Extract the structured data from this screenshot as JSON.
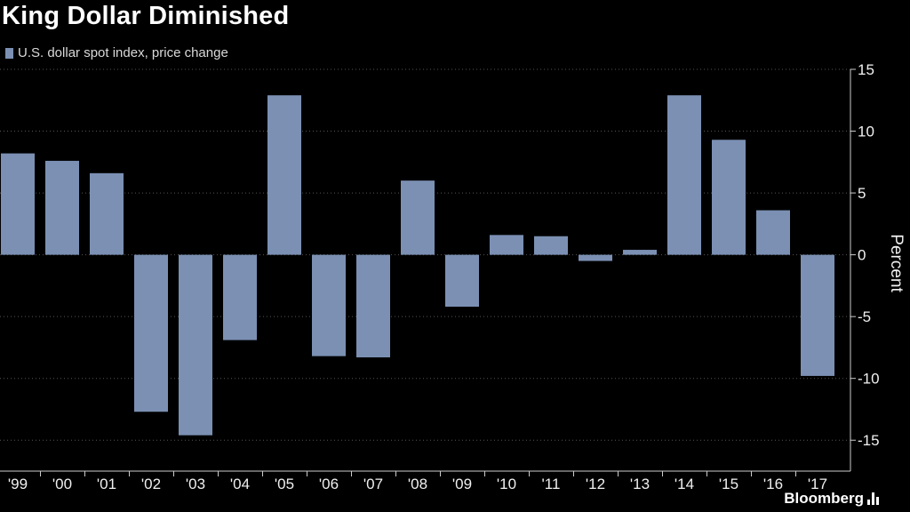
{
  "header": {
    "title": "King Dollar Diminished"
  },
  "legend": {
    "label": "U.S. dollar spot index, price change",
    "color": "#7b90b3"
  },
  "brand": {
    "name": "Bloomberg"
  },
  "colors": {
    "background": "#000000",
    "bar": "#7b90b3",
    "grid": "#555555",
    "axis": "#cccccc"
  },
  "chart_data": {
    "type": "bar",
    "title": "King Dollar Diminished",
    "categories": [
      "'99",
      "'00",
      "'01",
      "'02",
      "'03",
      "'04",
      "'05",
      "'06",
      "'07",
      "'08",
      "'09",
      "'10",
      "'11",
      "'12",
      "'13",
      "'14",
      "'15",
      "'16",
      "'17"
    ],
    "series": [
      {
        "name": "U.S. dollar spot index, price change",
        "values": [
          8.2,
          7.6,
          6.6,
          -12.7,
          -14.6,
          -6.9,
          12.9,
          -8.2,
          -8.3,
          6.0,
          -4.2,
          1.6,
          1.5,
          -0.5,
          0.4,
          12.9,
          9.3,
          3.6,
          -9.8
        ]
      }
    ],
    "ylabel": "Percent",
    "ylim": [
      -17.5,
      15
    ],
    "yticks": [
      15,
      10,
      5,
      0,
      -5,
      -10,
      -15
    ],
    "ytick_labels": [
      "15",
      "10",
      "5",
      "0",
      "-5",
      "-10",
      "-15"
    ],
    "y_axis_side": "right",
    "grid": "horizontal-dotted"
  }
}
